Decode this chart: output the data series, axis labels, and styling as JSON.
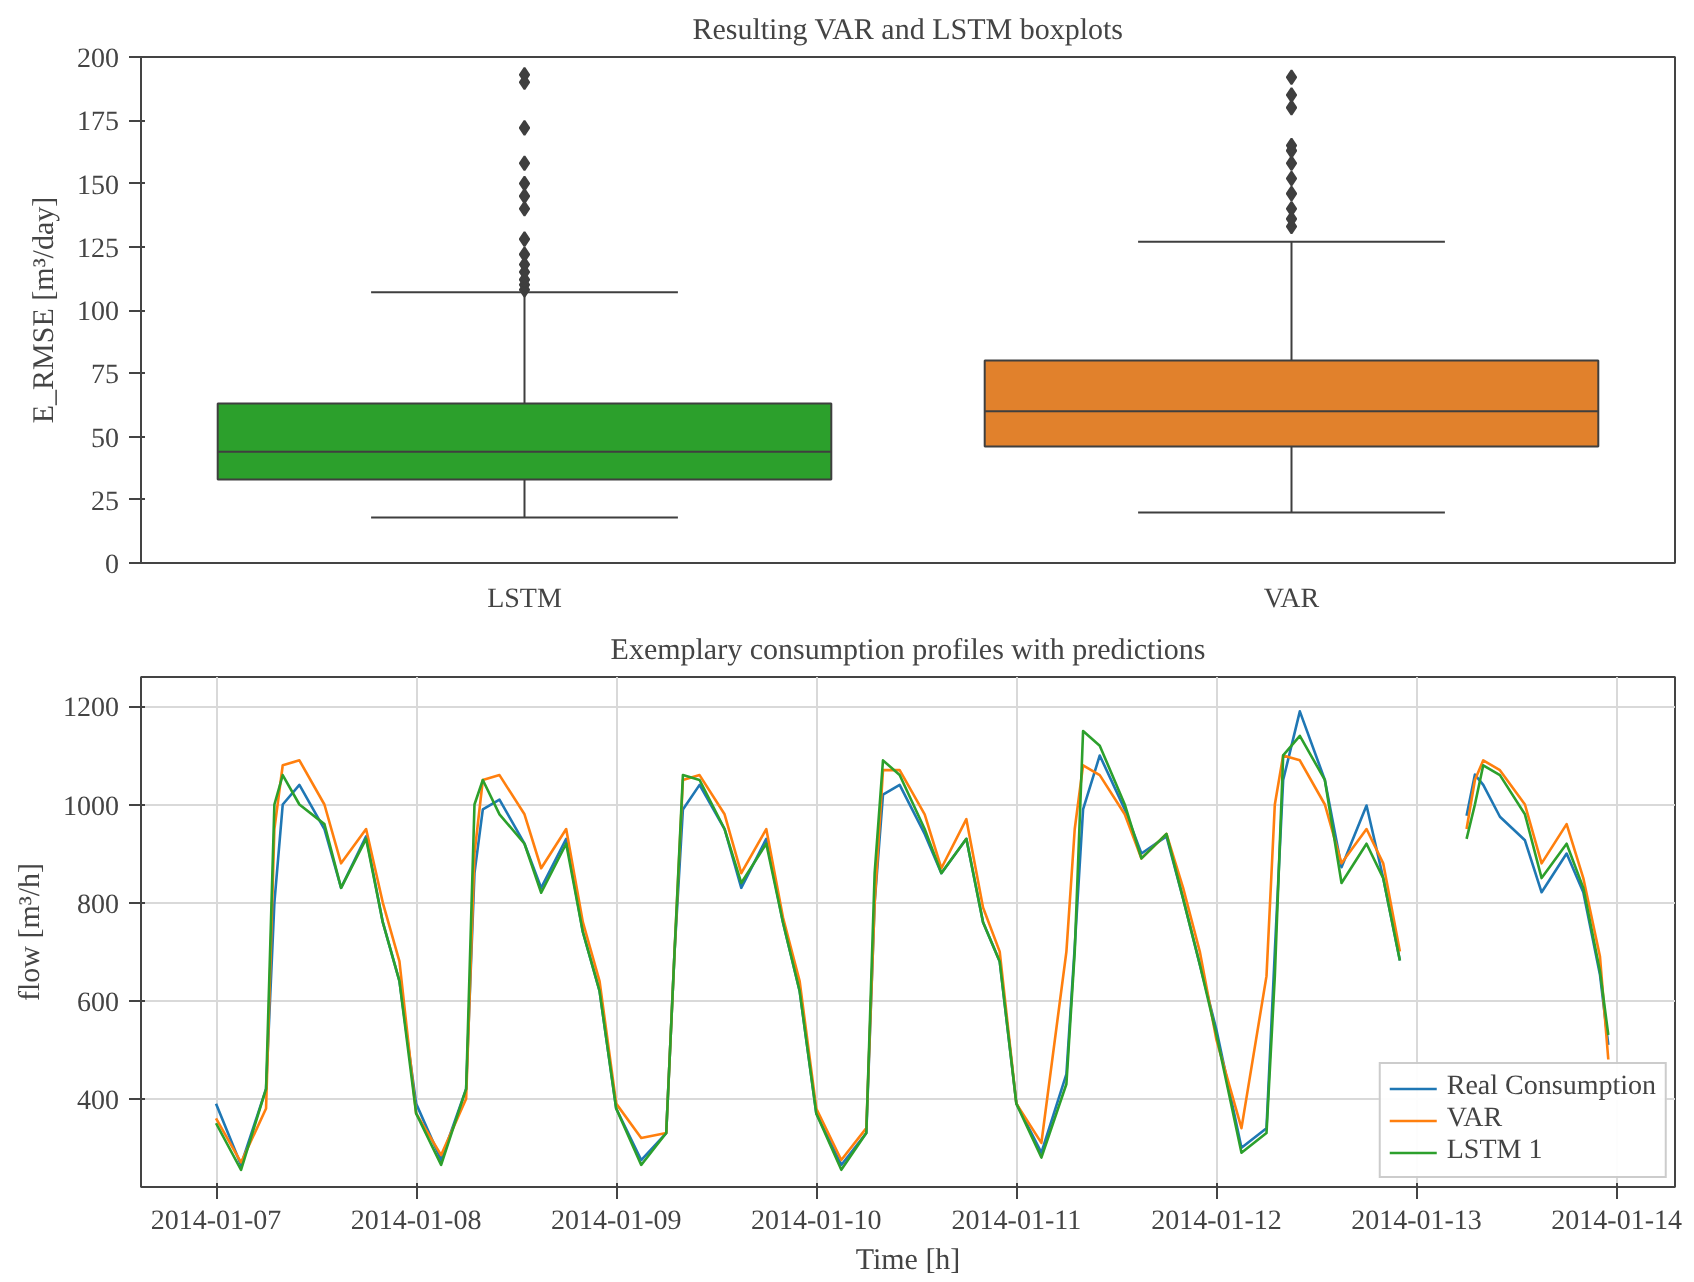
{
  "chart_data": [
    {
      "type": "box",
      "title": "Resulting VAR and LSTM boxplots",
      "ylabel": "E_RMSE [m³/day]",
      "categories": [
        "LSTM",
        "VAR"
      ],
      "colors": [
        "#2ca02c",
        "#e1812c"
      ],
      "ylim": [
        0,
        200
      ],
      "yticks": [
        0,
        25,
        50,
        75,
        100,
        125,
        150,
        175,
        200
      ],
      "boxes": [
        {
          "low": 18,
          "q1": 33,
          "median": 44,
          "q3": 63,
          "high": 107,
          "outliers": [
            108,
            110,
            112,
            115,
            118,
            122,
            128,
            140,
            145,
            150,
            158,
            172,
            190,
            193
          ]
        },
        {
          "low": 20,
          "q1": 46,
          "median": 60,
          "q3": 80,
          "high": 127,
          "outliers": [
            133,
            136,
            140,
            146,
            152,
            158,
            163,
            165,
            180,
            185,
            192
          ]
        }
      ]
    },
    {
      "type": "line",
      "title": "Exemplary consumption profiles with predictions",
      "xlabel": "Time [h]",
      "ylabel": "flow [m³/h]",
      "grid": true,
      "legend": "bottom right",
      "xlim": [
        "2014-01-06T15:00",
        "2014-01-14T07:00"
      ],
      "ylim": [
        220,
        1260
      ],
      "yticks": [
        400,
        600,
        800,
        1000,
        1200
      ],
      "xticks": [
        "2014-01-07",
        "2014-01-08",
        "2014-01-09",
        "2014-01-10",
        "2014-01-11",
        "2014-01-12",
        "2014-01-13",
        "2014-01-14"
      ],
      "x": [
        "2014-01-07T00:00",
        "2014-01-07T03:00",
        "2014-01-07T06:00",
        "2014-01-07T07:00",
        "2014-01-07T08:00",
        "2014-01-07T10:00",
        "2014-01-07T13:00",
        "2014-01-07T15:00",
        "2014-01-07T18:00",
        "2014-01-07T20:00",
        "2014-01-07T22:00",
        "2014-01-08T00:00",
        "2014-01-08T03:00",
        "2014-01-08T06:00",
        "2014-01-08T07:00",
        "2014-01-08T08:00",
        "2014-01-08T10:00",
        "2014-01-08T13:00",
        "2014-01-08T15:00",
        "2014-01-08T18:00",
        "2014-01-08T20:00",
        "2014-01-08T22:00",
        "2014-01-09T00:00",
        "2014-01-09T03:00",
        "2014-01-09T06:00",
        "2014-01-09T07:00",
        "2014-01-09T08:00",
        "2014-01-09T10:00",
        "2014-01-09T13:00",
        "2014-01-09T15:00",
        "2014-01-09T18:00",
        "2014-01-09T20:00",
        "2014-01-09T22:00",
        "2014-01-10T00:00",
        "2014-01-10T03:00",
        "2014-01-10T06:00",
        "2014-01-10T07:00",
        "2014-01-10T08:00",
        "2014-01-10T10:00",
        "2014-01-10T13:00",
        "2014-01-10T15:00",
        "2014-01-10T18:00",
        "2014-01-10T20:00",
        "2014-01-10T22:00",
        "2014-01-11T00:00",
        "2014-01-11T03:00",
        "2014-01-11T06:00",
        "2014-01-11T07:00",
        "2014-01-11T08:00",
        "2014-01-11T10:00",
        "2014-01-11T13:00",
        "2014-01-11T15:00",
        "2014-01-11T18:00",
        "2014-01-11T20:00",
        "2014-01-11T22:00",
        "2014-01-12T00:00",
        "2014-01-12T03:00",
        "2014-01-12T06:00",
        "2014-01-12T07:00",
        "2014-01-12T08:00",
        "2014-01-12T10:00",
        "2014-01-12T13:00",
        "2014-01-12T15:00",
        "2014-01-12T18:00",
        "2014-01-12T20:00",
        "2014-01-12T22:00",
        "2014-01-13T00:00",
        "2014-01-13T03:00",
        "2014-01-13T06:00",
        "2014-01-13T07:00",
        "2014-01-13T08:00",
        "2014-01-13T10:00",
        "2014-01-13T13:00",
        "2014-01-13T15:00",
        "2014-01-13T18:00",
        "2014-01-13T20:00",
        "2014-01-13T22:00",
        "2014-01-13T23:00"
      ],
      "series": [
        {
          "name": "Real Consumption",
          "color": "#1f77b4",
          "values": [
            390,
            265,
            420,
            800,
            1000,
            1040,
            950,
            830,
            935,
            760,
            640,
            390,
            275,
            420,
            860,
            990,
            1010,
            920,
            830,
            930,
            740,
            620,
            380,
            275,
            330,
            700,
            990,
            1040,
            950,
            830,
            930,
            760,
            620,
            370,
            265,
            330,
            800,
            1020,
            1040,
            940,
            860,
            930,
            760,
            680,
            390,
            290,
            450,
            710,
            990,
            1100,
            990,
            900,
            935,
            808,
            674,
            540,
            300,
            340,
            700,
            1050,
            1190,
            1050,
            872,
            998,
            850,
            682,
            null,
            null,
            977,
            1061,
            1040,
            975,
            927,
            821,
            900,
            821,
            653,
            510
          ]
        },
        {
          "name": "VAR",
          "color": "#ff7f0e",
          "values": [
            360,
            270,
            380,
            950,
            1080,
            1090,
            1000,
            880,
            950,
            800,
            680,
            370,
            285,
            400,
            900,
            1050,
            1060,
            980,
            870,
            950,
            760,
            640,
            390,
            320,
            330,
            700,
            1050,
            1060,
            980,
            860,
            950,
            770,
            640,
            380,
            275,
            340,
            800,
            1070,
            1070,
            980,
            870,
            970,
            790,
            700,
            390,
            310,
            700,
            950,
            1080,
            1060,
            980,
            890,
            940,
            830,
            700,
            520,
            340,
            650,
            1000,
            1100,
            1090,
            1000,
            880,
            950,
            880,
            700,
            null,
            null,
            950,
            1050,
            1090,
            1070,
            1000,
            880,
            960,
            850,
            690,
            480
          ]
        },
        {
          "name": "LSTM 1",
          "color": "#2ca02c",
          "values": [
            350,
            255,
            420,
            1000,
            1060,
            1000,
            960,
            830,
            930,
            760,
            640,
            370,
            265,
            420,
            1000,
            1050,
            980,
            920,
            820,
            920,
            740,
            620,
            380,
            265,
            330,
            700,
            1060,
            1050,
            950,
            840,
            920,
            760,
            620,
            370,
            255,
            330,
            860,
            1090,
            1060,
            950,
            860,
            930,
            760,
            680,
            390,
            280,
            430,
            700,
            1150,
            1120,
            1000,
            890,
            940,
            808,
            674,
            530,
            290,
            330,
            650,
            1100,
            1140,
            1050,
            840,
            920,
            850,
            682,
            null,
            null,
            930,
            1000,
            1080,
            1060,
            980,
            850,
            920,
            830,
            660,
            530
          ]
        }
      ]
    }
  ]
}
